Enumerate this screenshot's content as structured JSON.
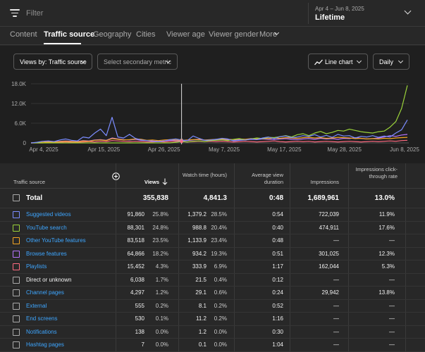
{
  "filter": {
    "placeholder": "Filter"
  },
  "date": {
    "range": "Apr 4 – Jun 8, 2025",
    "period": "Lifetime"
  },
  "tabs": [
    "Content",
    "Traffic source",
    "Geography",
    "Cities",
    "Viewer age",
    "Viewer gender",
    "More"
  ],
  "controls": {
    "primary_metric": "Views by: Traffic source",
    "secondary_metric": "Select secondary metric",
    "chart_type": "Line chart",
    "interval": "Daily"
  },
  "chart_data": {
    "type": "line",
    "x_ticks": [
      "Apr 4, 2025",
      "Apr 15, 2025",
      "Apr 26, 2025",
      "May 7, 2025",
      "May 17, 2025",
      "May 28, 2025",
      "Jun 8, 2025"
    ],
    "y_ticks": [
      "18.0K",
      "12.0K",
      "6.0K",
      "0"
    ],
    "ylim": [
      0,
      18000
    ],
    "days": 66,
    "series": [
      {
        "color": "#7b8cff",
        "values": [
          0,
          200,
          500,
          600,
          400,
          900,
          1200,
          800,
          600,
          1800,
          1500,
          3000,
          4200,
          2200,
          7800,
          1800,
          1500,
          2600,
          1400,
          900,
          700,
          500,
          400,
          600,
          1000,
          1200,
          900,
          700,
          2100,
          1400,
          800,
          900,
          1100,
          1400,
          1200,
          600,
          800,
          900,
          1200,
          1000,
          1500,
          1800,
          1300,
          1900,
          2100,
          1600,
          1800,
          2200,
          2000,
          2500,
          1800,
          2300,
          1700,
          2600,
          2100,
          2200,
          1500,
          2000,
          1800,
          2200,
          1700,
          2100,
          1800,
          3000,
          4000,
          7000
        ]
      },
      {
        "color": "#9bd33a",
        "values": [
          0,
          0,
          0,
          0,
          0,
          0,
          0,
          0,
          0,
          0,
          0,
          0,
          0,
          0,
          0,
          0,
          0,
          0,
          0,
          0,
          0,
          0,
          0,
          0,
          0,
          200,
          400,
          300,
          500,
          600,
          400,
          700,
          800,
          900,
          700,
          1100,
          1300,
          900,
          1200,
          1500,
          1300,
          1700,
          1600,
          1900,
          2200,
          1800,
          2500,
          2800,
          2200,
          3000,
          3500,
          2800,
          3200,
          3800,
          3600,
          4200,
          3800,
          3400,
          3200,
          3000,
          3400,
          3600,
          4800,
          6500,
          10500,
          17500
        ]
      },
      {
        "color": "#f5a623",
        "values": [
          0,
          100,
          200,
          300,
          200,
          400,
          500,
          400,
          300,
          600,
          500,
          800,
          900,
          700,
          1300,
          1100,
          900,
          1000,
          1200,
          1100,
          800,
          900,
          700,
          900,
          1000,
          900,
          800,
          900,
          1000,
          1100,
          900,
          1000,
          1100,
          1200,
          1100,
          1000,
          1200,
          1100,
          1300,
          1200,
          1400,
          1300,
          1500,
          1400,
          1600,
          1500,
          1400,
          1600,
          1700,
          1500,
          1600,
          1400,
          1500,
          1700,
          1600,
          1500,
          1300,
          1400,
          1200,
          1300,
          1200,
          1400,
          1300,
          1500,
          1600,
          1700
        ]
      },
      {
        "color": "#b774ff",
        "values": [
          0,
          100,
          200,
          400,
          300,
          500,
          600,
          500,
          400,
          700,
          600,
          900,
          1000,
          800,
          1500,
          1200,
          1000,
          900,
          1100,
          800,
          700,
          600,
          500,
          600,
          800,
          700,
          600,
          700,
          900,
          1000,
          800,
          700,
          900,
          1000,
          900,
          800,
          1000,
          900,
          1100,
          1000,
          1200,
          1100,
          1000,
          1200,
          1300,
          1100,
          1000,
          1200,
          1300,
          1100,
          1400,
          1200,
          1300,
          1100,
          1400,
          1300,
          1600,
          1400,
          1200,
          1300,
          1500,
          1800,
          2200,
          2000,
          2400,
          2600
        ]
      },
      {
        "color": "#ff6b81",
        "values": [
          0,
          0,
          0,
          100,
          100,
          200,
          300,
          200,
          200,
          300,
          400,
          300,
          500,
          400,
          700,
          600,
          500,
          400,
          500,
          400,
          300,
          300,
          400,
          300,
          400,
          500,
          400,
          300,
          400,
          500,
          400,
          500,
          400,
          500,
          400,
          300,
          400,
          500,
          400,
          300,
          400,
          500,
          600,
          400,
          300,
          400,
          500,
          400,
          500,
          300,
          400,
          500,
          400,
          300,
          400,
          500,
          400,
          300,
          400,
          500,
          400,
          500,
          600,
          500,
          700,
          800
        ]
      }
    ],
    "cursor_index": 26
  },
  "table": {
    "headers": {
      "source": "Traffic source",
      "views": "Views",
      "watch_time": "Watch time (hours)",
      "avg_view_duration": "Average view duration",
      "impressions": "Impressions",
      "ctr": "Impressions click-through rate"
    },
    "total": {
      "label": "Total",
      "views": "355,838",
      "watch": "4,841.3",
      "avd": "0:48",
      "impr": "1,689,961",
      "ctr": "13.0%"
    },
    "rows": [
      {
        "label": "Suggested videos",
        "color": "#7b8cff",
        "link": true,
        "views": "91,860",
        "views_pct": "25.8%",
        "watch": "1,379.2",
        "watch_pct": "28.5%",
        "avd": "0:54",
        "impr": "722,039",
        "ctr": "11.9%"
      },
      {
        "label": "YouTube search",
        "color": "#9bd33a",
        "link": true,
        "views": "88,301",
        "views_pct": "24.8%",
        "watch": "988.8",
        "watch_pct": "20.4%",
        "avd": "0:40",
        "impr": "474,911",
        "ctr": "17.6%"
      },
      {
        "label": "Other YouTube features",
        "color": "#f5a623",
        "link": true,
        "views": "83,518",
        "views_pct": "23.5%",
        "watch": "1,133.9",
        "watch_pct": "23.4%",
        "avd": "0:48",
        "impr": "—",
        "ctr": "—"
      },
      {
        "label": "Browse features",
        "color": "#b774ff",
        "link": true,
        "views": "64,866",
        "views_pct": "18.2%",
        "watch": "934.2",
        "watch_pct": "19.3%",
        "avd": "0:51",
        "impr": "301,025",
        "ctr": "12.3%"
      },
      {
        "label": "Playlists",
        "color": "#ff6b81",
        "link": true,
        "views": "15,452",
        "views_pct": "4.3%",
        "watch": "333.9",
        "watch_pct": "6.9%",
        "avd": "1:17",
        "impr": "162,044",
        "ctr": "5.3%"
      },
      {
        "label": "Direct or unknown",
        "color": "#aaaaaa",
        "link": false,
        "views": "6,038",
        "views_pct": "1.7%",
        "watch": "21.5",
        "watch_pct": "0.4%",
        "avd": "0:12",
        "impr": "—",
        "ctr": "—"
      },
      {
        "label": "Channel pages",
        "color": "#aaaaaa",
        "link": true,
        "views": "4,297",
        "views_pct": "1.2%",
        "watch": "29.1",
        "watch_pct": "0.6%",
        "avd": "0:24",
        "impr": "29,942",
        "ctr": "13.8%"
      },
      {
        "label": "External",
        "color": "#aaaaaa",
        "link": true,
        "views": "555",
        "views_pct": "0.2%",
        "watch": "8.1",
        "watch_pct": "0.2%",
        "avd": "0:52",
        "impr": "—",
        "ctr": "—"
      },
      {
        "label": "End screens",
        "color": "#aaaaaa",
        "link": true,
        "views": "530",
        "views_pct": "0.1%",
        "watch": "11.2",
        "watch_pct": "0.2%",
        "avd": "1:16",
        "impr": "—",
        "ctr": "—"
      },
      {
        "label": "Notifications",
        "color": "#aaaaaa",
        "link": true,
        "views": "138",
        "views_pct": "0.0%",
        "watch": "1.2",
        "watch_pct": "0.0%",
        "avd": "0:30",
        "impr": "—",
        "ctr": "—"
      },
      {
        "label": "Hashtag pages",
        "color": "#aaaaaa",
        "link": true,
        "views": "7",
        "views_pct": "0.0%",
        "watch": "0.1",
        "watch_pct": "0.0%",
        "avd": "1:04",
        "impr": "—",
        "ctr": "—"
      }
    ]
  }
}
